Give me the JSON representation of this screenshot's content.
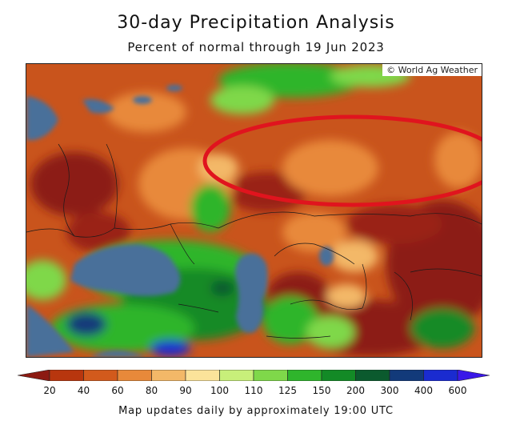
{
  "title": "30-day Precipitation Analysis",
  "subtitle": "Percent of normal through 19 Jun 2023",
  "copyright": "© World Ag Weather",
  "footer": "Map updates daily by approximately 19:00 UTC",
  "legend": {
    "ticks": [
      "20",
      "40",
      "60",
      "80",
      "90",
      "100",
      "110",
      "125",
      "150",
      "200",
      "300",
      "400",
      "600"
    ],
    "colors": [
      "#8c1a12",
      "#b8360e",
      "#d25a1c",
      "#e8893a",
      "#f3b868",
      "#fbe39a",
      "#c8ef7a",
      "#7fd84a",
      "#2fb52c",
      "#138a26",
      "#0b5a2e",
      "#123a7a",
      "#1a2bd0",
      "#3a18e8"
    ]
  },
  "colors": {
    "water": "#4a6f9a",
    "highlight_circle": "#e0141e"
  }
}
